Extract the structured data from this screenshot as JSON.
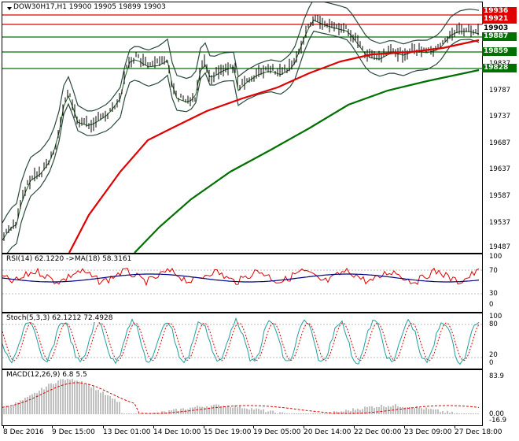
{
  "main": {
    "symbol_text": "DOW30H17,H1  19900 19905 19899 19903",
    "price_ticks": [
      "19903",
      "19837",
      "19787",
      "19737",
      "19687",
      "19637",
      "19587",
      "19537",
      "19487"
    ],
    "tags": [
      {
        "label": "19936",
        "color": "#e00000"
      },
      {
        "label": "19921",
        "color": "#e00000"
      },
      {
        "label": "19903",
        "color": "#ffffff",
        "text_color": "#000000"
      },
      {
        "label": "19887",
        "color": "#007000"
      },
      {
        "label": "19859",
        "color": "#007000"
      },
      {
        "label": "19828",
        "color": "#007000"
      }
    ]
  },
  "rsi": {
    "label": "RSI(14) 62.1220  ->MA(18) 58.3161",
    "ticks": [
      "100",
      "70",
      "30",
      "0"
    ]
  },
  "stoch": {
    "label": "Stoch(5,3,3) 62.1212 72.4928",
    "ticks": [
      "100",
      "80",
      "20",
      "0"
    ]
  },
  "macd": {
    "label": "MACD(12,26,9) 6.8 5.5",
    "ticks": [
      "83.9",
      "0.00",
      "-16.9"
    ]
  },
  "time_labels": [
    "8 Dec 2016",
    "9 Dec 15:00",
    "13 Dec 01:00",
    "14 Dec 10:00",
    "15 Dec 19:00",
    "19 Dec 05:00",
    "20 Dec 14:00",
    "22 Dec 00:00",
    "23 Dec 09:00",
    "27 Dec 18:00"
  ],
  "colors": {
    "ma_red": "#e00000",
    "ma_green": "#007000",
    "bands": "#2a4a3a",
    "rsi_line": "#e00000",
    "rsi_ma": "#000080",
    "stoch_main": "#20a0a0",
    "stoch_signal": "#e00000",
    "macd_hist": "#c0c0c0",
    "macd_signal": "#e00000"
  }
}
